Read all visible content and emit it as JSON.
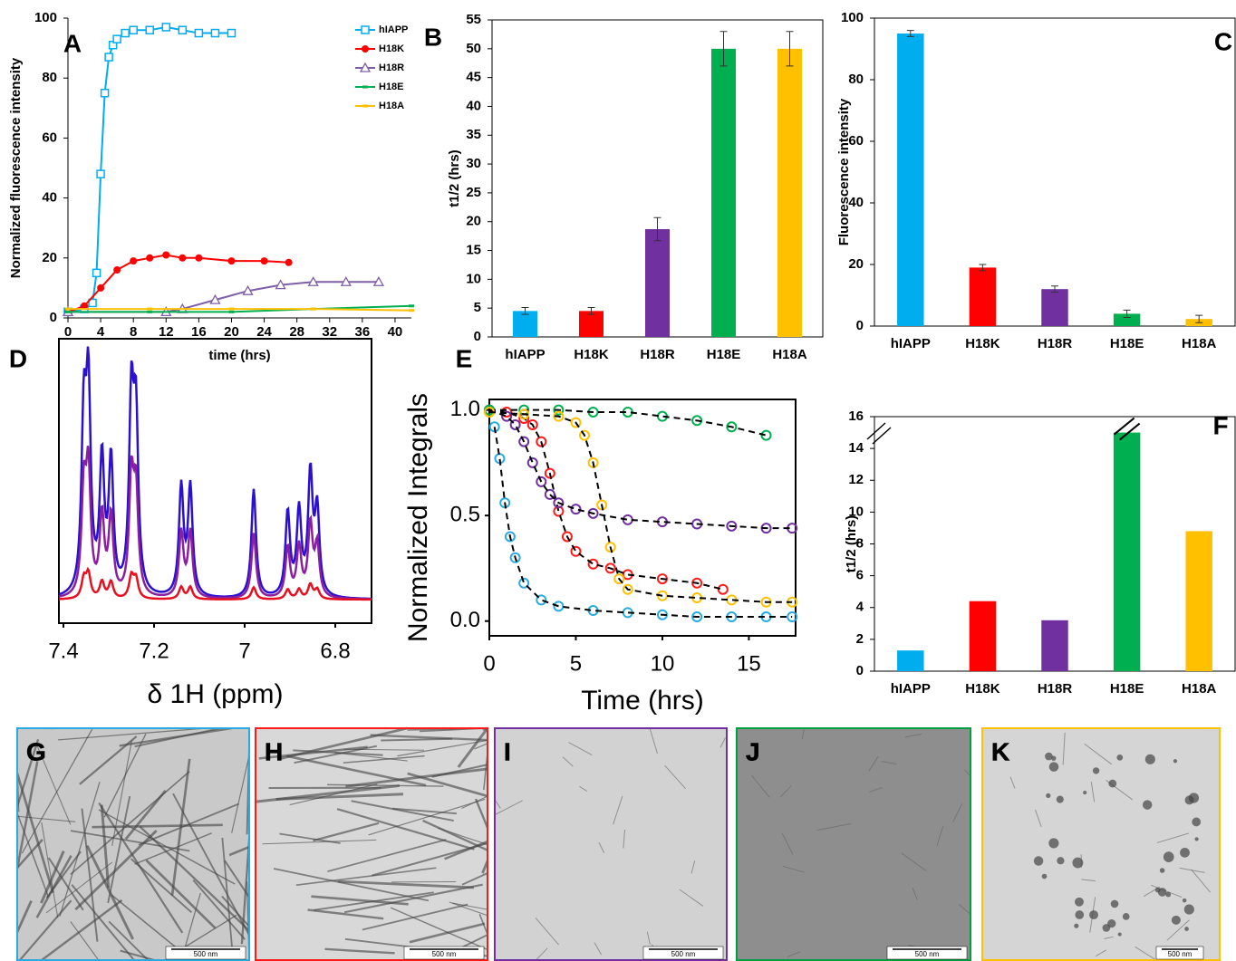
{
  "chart_data": [
    {
      "type": "line",
      "label": "A",
      "xlabel": "time (hrs)",
      "ylabel": "Normalized fluorescence intensity",
      "xlim": [
        0,
        42
      ],
      "xticks": [
        0,
        4,
        8,
        12,
        16,
        20,
        24,
        28,
        32,
        36,
        40
      ],
      "ylim": [
        0,
        100
      ],
      "yticks": [
        0,
        20,
        40,
        60,
        80,
        100
      ],
      "legend": "upper right",
      "series": [
        {
          "name": "hIAPP",
          "color": "#00aeef",
          "marker": "square",
          "x": [
            0,
            2,
            3,
            3.5,
            4,
            4.5,
            5,
            5.5,
            6,
            7,
            8,
            10,
            12,
            14,
            16,
            18,
            20
          ],
          "values": [
            2,
            3,
            5,
            15,
            48,
            75,
            87,
            91,
            93,
            95,
            96,
            96,
            97,
            96,
            95,
            95,
            95
          ]
        },
        {
          "name": "H18K",
          "color": "#ff0000",
          "marker": "circle",
          "x": [
            0,
            2,
            4,
            6,
            8,
            10,
            12,
            14,
            16,
            20,
            24,
            27
          ],
          "values": [
            2,
            4,
            10,
            16,
            19,
            20,
            21,
            20,
            20,
            19,
            19,
            18.5
          ]
        },
        {
          "name": "H18R",
          "color": "#7f5fa8",
          "marker": "triangle",
          "x": [
            0,
            12,
            14,
            18,
            22,
            26,
            30,
            34,
            38
          ],
          "values": [
            2,
            2,
            3,
            6,
            9,
            11,
            12,
            12,
            12
          ]
        },
        {
          "name": "H18E",
          "color": "#00b050",
          "marker": "dash",
          "x": [
            0,
            10,
            20,
            30,
            42
          ],
          "values": [
            2,
            2,
            2,
            3,
            4
          ]
        },
        {
          "name": "H18A",
          "color": "#ffc000",
          "marker": "dash",
          "x": [
            0,
            10,
            20,
            30,
            42
          ],
          "values": [
            3,
            3,
            3,
            3,
            2.5
          ]
        }
      ]
    },
    {
      "type": "bar",
      "label": "B",
      "ylabel": "t1/2 (hrs)",
      "categories": [
        "hIAPP",
        "H18K",
        "H18R",
        "H18E",
        "H18A"
      ],
      "values": [
        4.5,
        4.5,
        18.7,
        50,
        50
      ],
      "errors": [
        0.6,
        0.6,
        2,
        3,
        3
      ],
      "colors": [
        "#00aeef",
        "#ff0000",
        "#7030a0",
        "#00b050",
        "#ffc000"
      ],
      "ylim": [
        0,
        55
      ],
      "yticks": [
        0,
        5,
        10,
        15,
        20,
        25,
        30,
        35,
        40,
        45,
        50,
        55
      ]
    },
    {
      "type": "bar",
      "label": "C",
      "ylabel": "Fluorescence intensity",
      "categories": [
        "hIAPP",
        "H18K",
        "H18R",
        "H18E",
        "H18A"
      ],
      "values": [
        95,
        19,
        12,
        4,
        2.3
      ],
      "errors": [
        1,
        1,
        1,
        1.2,
        1.2
      ],
      "colors": [
        "#00aeef",
        "#ff0000",
        "#7030a0",
        "#00b050",
        "#ffc000"
      ],
      "ylim": [
        0,
        100
      ],
      "yticks": [
        0,
        20,
        40,
        60,
        80,
        100
      ]
    },
    {
      "type": "spectrum",
      "label": "D",
      "xlabel": "δ 1H (ppm)",
      "xlim": [
        7.41,
        6.72
      ],
      "xticks": [
        7.4,
        7.2,
        7.0,
        6.8
      ],
      "peaks": [
        7.355,
        7.345,
        7.315,
        7.295,
        7.25,
        7.24,
        7.14,
        7.12,
        6.98,
        6.905,
        6.88,
        6.855,
        6.84
      ],
      "series": [
        {
          "color": "#2b10d0",
          "values": [
            0.7,
            0.82,
            0.55,
            0.55,
            0.78,
            0.7,
            0.45,
            0.45,
            0.45,
            0.35,
            0.35,
            0.5,
            0.35
          ]
        },
        {
          "color": "#8a1fa0",
          "values": [
            0.42,
            0.5,
            0.33,
            0.33,
            0.47,
            0.42,
            0.27,
            0.27,
            0.27,
            0.21,
            0.21,
            0.3,
            0.21
          ]
        },
        {
          "color": "#e81020",
          "values": [
            0.08,
            0.1,
            0.07,
            0.07,
            0.09,
            0.08,
            0.05,
            0.05,
            0.05,
            0.04,
            0.04,
            0.06,
            0.04
          ]
        }
      ]
    },
    {
      "type": "scatter",
      "label": "E",
      "xlabel": "Time (hrs)",
      "ylabel": "Normalized Integrals",
      "fit": true,
      "xlim": [
        0,
        17.7
      ],
      "xticks": [
        0,
        5,
        10,
        15
      ],
      "ylim": [
        -0.07,
        1.05
      ],
      "yticks": [
        {
          "value": 0,
          "label": "0.0"
        },
        {
          "value": 0.5,
          "label": "0.5"
        },
        {
          "value": 1,
          "label": "1.0"
        }
      ],
      "series": [
        {
          "color": "#29abe2",
          "x": [
            0.3,
            0.6,
            0.9,
            1.2,
            1.5,
            2,
            3,
            4,
            6,
            8,
            10,
            12,
            14,
            16,
            17.5
          ],
          "values": [
            0.92,
            0.77,
            0.56,
            0.4,
            0.3,
            0.18,
            0.1,
            0.07,
            0.05,
            0.04,
            0.03,
            0.02,
            0.02,
            0.02,
            0.02
          ]
        },
        {
          "color": "#ff1a1a",
          "x": [
            0,
            1,
            2,
            2.5,
            3,
            3.5,
            4,
            4.5,
            5,
            6,
            7,
            8,
            10,
            12,
            13.5
          ],
          "values": [
            1,
            0.99,
            0.96,
            0.93,
            0.85,
            0.7,
            0.52,
            0.4,
            0.33,
            0.27,
            0.25,
            0.22,
            0.2,
            0.18,
            0.15
          ]
        },
        {
          "color": "#7030a0",
          "x": [
            0,
            1,
            1.5,
            2,
            2.5,
            3,
            3.5,
            4,
            5,
            6,
            8,
            10,
            12,
            14,
            16,
            17.5
          ],
          "values": [
            1,
            0.97,
            0.93,
            0.85,
            0.75,
            0.66,
            0.6,
            0.56,
            0.53,
            0.51,
            0.48,
            0.47,
            0.46,
            0.45,
            0.44,
            0.44
          ]
        },
        {
          "color": "#00b050",
          "x": [
            0,
            2,
            4,
            6,
            8,
            10,
            12,
            14,
            16
          ],
          "values": [
            1,
            1,
            1,
            0.99,
            0.99,
            0.97,
            0.95,
            0.92,
            0.88
          ]
        },
        {
          "color": "#ffc000",
          "x": [
            0,
            2,
            4,
            5,
            5.5,
            6,
            6.5,
            7,
            7.5,
            8,
            10,
            12,
            14,
            16,
            17.5
          ],
          "values": [
            0.99,
            0.98,
            0.97,
            0.94,
            0.88,
            0.75,
            0.55,
            0.35,
            0.2,
            0.15,
            0.12,
            0.11,
            0.1,
            0.09,
            0.09
          ]
        }
      ]
    },
    {
      "type": "bar",
      "label": "F",
      "ylabel": "t1/2 (hrs)",
      "categories": [
        "hIAPP",
        "H18K",
        "H18R",
        "H18E",
        "H18A"
      ],
      "values": [
        1.3,
        4.4,
        3.2,
        15,
        8.8
      ],
      "colors": [
        "#00aeef",
        "#ff0000",
        "#7030a0",
        "#00b050",
        "#ffc000"
      ],
      "axis_break": true,
      "ylim": [
        0,
        16
      ],
      "yticks": [
        0,
        2,
        4,
        6,
        8,
        10,
        12,
        14,
        16
      ]
    }
  ],
  "micrographs": [
    {
      "label": "G",
      "color": "#29abe2",
      "scale_bar": "500 nm"
    },
    {
      "label": "H",
      "color": "#ff1a1a",
      "scale_bar": "500 nm"
    },
    {
      "label": "I",
      "color": "#7030a0",
      "scale_bar": "500 nm"
    },
    {
      "label": "J",
      "color": "#00a040",
      "scale_bar": "500 nm"
    },
    {
      "label": "K",
      "color": "#ffc000",
      "scale_bar": "500 nm"
    }
  ]
}
